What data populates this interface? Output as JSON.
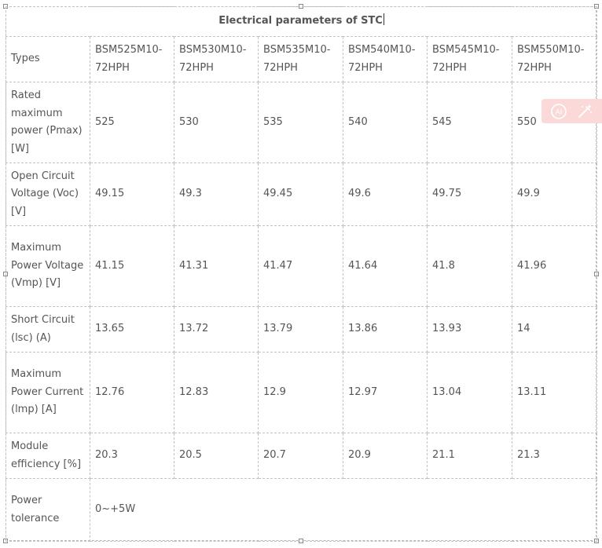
{
  "table": {
    "title": "Electrical parameters of STC",
    "rows": [
      {
        "label": "Types",
        "values": [
          "BSM525M10-72HPH",
          "BSM530M10-72HPH",
          "BSM535M10-72HPH",
          "BSM540M10-72HPH",
          "BSM545M10-72HPH",
          "BSM550M10-72HPH"
        ]
      },
      {
        "label": "Rated maximum power (Pmax) [W]",
        "values": [
          "525",
          "530",
          "535",
          "540",
          "545",
          "550"
        ]
      },
      {
        "label": "Open Circuit Voltage (Voc) [V]",
        "values": [
          "49.15",
          "49.3",
          "49.45",
          "49.6",
          "49.75",
          "49.9"
        ]
      },
      {
        "label": "Maximum Power Voltage (Vmp) [V]",
        "values": [
          "41.15",
          "41.31",
          "41.47",
          "41.64",
          "41.8",
          "41.96"
        ]
      },
      {
        "label": "Short Circuit (lsc) (A)",
        "values": [
          "13.65",
          "13.72",
          "13.79",
          "13.86",
          "13.93",
          "14"
        ]
      },
      {
        "label": "Maximum Power Current (lmp) [A]",
        "values": [
          "12.76",
          "12.83",
          "12.9",
          "12.97",
          "13.04",
          "13.11"
        ]
      },
      {
        "label": "Module efficiency [%]",
        "values": [
          "20.3",
          "20.5",
          "20.7",
          "20.9",
          "21.1",
          "21.3"
        ]
      }
    ],
    "tolerance": {
      "label": "Power tolerance",
      "value": "0~+5W"
    }
  },
  "ai_toolbar": {
    "icons": [
      "ai-assistant-icon",
      "magic-wand-icon"
    ],
    "color": "#fbd9d9",
    "icon_color": "#ffffff"
  }
}
